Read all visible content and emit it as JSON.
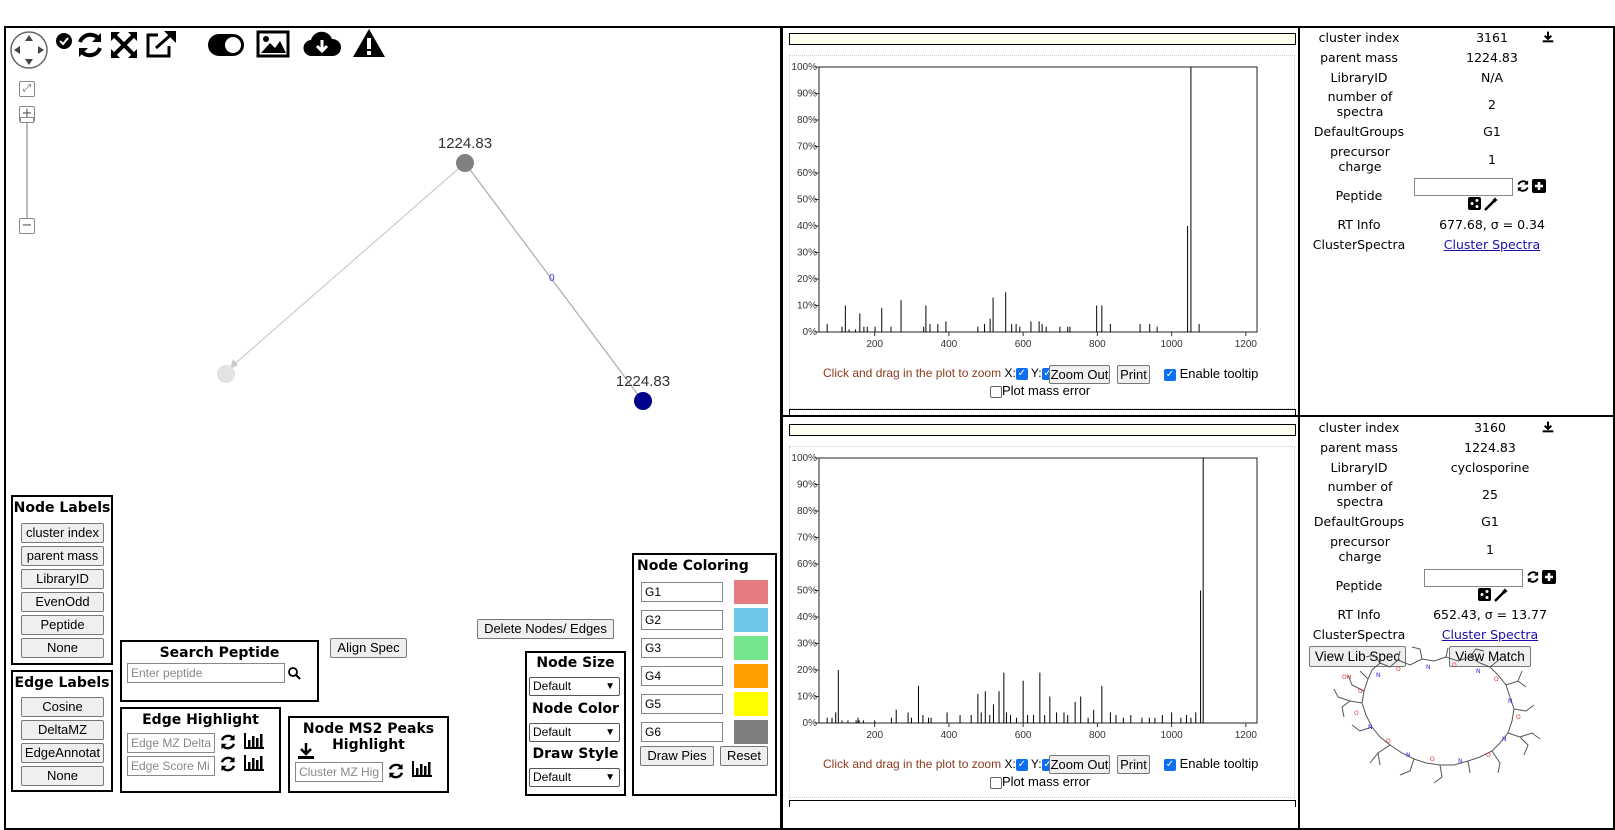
{
  "network": {
    "nodes": [
      {
        "label": "1224.83"
      },
      {
        "label": ""
      },
      {
        "label": "1224.83"
      }
    ],
    "edge_label": "0"
  },
  "toolbar": {
    "icons": [
      "pan-compass-icon",
      "check-circle-icon",
      "refresh-icon",
      "fullscreen-arrows-icon",
      "external-link-icon",
      "contrast-toggle-icon",
      "image-icon",
      "cloud-download-icon",
      "warning-icon"
    ]
  },
  "node_labels": {
    "title": "Node Labels",
    "buttons": [
      "cluster index",
      "parent mass",
      "LibraryID",
      "EvenOdd",
      "Peptide",
      "None"
    ]
  },
  "edge_labels": {
    "title": "Edge Labels",
    "buttons": [
      "Cosine",
      "DeltaMZ",
      "EdgeAnnotat",
      "None"
    ]
  },
  "search_peptide": {
    "title": "Search Peptide",
    "placeholder": "Enter peptide"
  },
  "align_spec": "Align Spec",
  "edge_highlight": {
    "title": "Edge Highlight",
    "mz_placeholder": "Edge MZ Delta",
    "score_placeholder": "Edge Score Mi"
  },
  "ms2_highlight": {
    "title_line1": "Node MS2 Peaks",
    "title_line2": "Highlight",
    "placeholder": "Cluster MZ Hig"
  },
  "delete_button": "Delete Nodes/ Edges",
  "node_settings": {
    "size_title": "Node Size",
    "size_value": "Default",
    "color_title": "Node Color",
    "color_value": "Default",
    "draw_title": "Draw Style",
    "draw_value": "Default"
  },
  "node_coloring": {
    "title": "Node Coloring",
    "groups": [
      {
        "name": "G1",
        "color": "#e67b82"
      },
      {
        "name": "G2",
        "color": "#6ec6e8"
      },
      {
        "name": "G3",
        "color": "#74e58a"
      },
      {
        "name": "G4",
        "color": "#ffa000"
      },
      {
        "name": "G5",
        "color": "#ffff00"
      },
      {
        "name": "G6",
        "color": "#7f7f7f"
      }
    ],
    "draw_pies": "Draw Pies",
    "reset": "Reset"
  },
  "spectrum_controls": {
    "hint": "Click and drag in the plot to zoom",
    "x_label": "X:",
    "y_label": "Y:",
    "zoom_out": "Zoom Out",
    "print": "Print",
    "tooltip": "Enable tooltip",
    "mass_error": "Plot mass error"
  },
  "spectrum_axis": {
    "x_ticks": [
      "200",
      "400",
      "600",
      "800",
      "1000",
      "1200"
    ],
    "y_ticks": [
      "0%",
      "10%",
      "20%",
      "30%",
      "40%",
      "50%",
      "60%",
      "70%",
      "80%",
      "90%",
      "100%"
    ]
  },
  "panels": [
    {
      "info": [
        {
          "key": "cluster index",
          "value": "3161"
        },
        {
          "key": "parent mass",
          "value": "1224.83"
        },
        {
          "key": "LibraryID",
          "value": "N/A"
        },
        {
          "key": "number of spectra",
          "value": "2"
        },
        {
          "key": "DefaultGroups",
          "value": "G1"
        },
        {
          "key": "precursor charge",
          "value": "1"
        },
        {
          "key": "Peptide",
          "value": ""
        },
        {
          "key": "RT Info",
          "value": "677.68, σ = 0.34"
        },
        {
          "key": "ClusterSpectra",
          "value": "Cluster Spectra"
        }
      ]
    },
    {
      "info": [
        {
          "key": "cluster index",
          "value": "3160"
        },
        {
          "key": "parent mass",
          "value": "1224.83"
        },
        {
          "key": "LibraryID",
          "value": "cyclosporine"
        },
        {
          "key": "number of spectra",
          "value": "25"
        },
        {
          "key": "DefaultGroups",
          "value": "G1"
        },
        {
          "key": "precursor charge",
          "value": "1"
        },
        {
          "key": "Peptide",
          "value": ""
        },
        {
          "key": "RT Info",
          "value": "652.43, σ = 13.77"
        },
        {
          "key": "ClusterSpectra",
          "value": "Cluster Spectra"
        }
      ],
      "view_lib_spec": "View Lib Spec",
      "view_match": "View Match"
    }
  ],
  "chart_data": [
    {
      "type": "bar",
      "xlim": [
        50,
        1230
      ],
      "ylim": [
        0,
        100
      ],
      "x": [
        72,
        112,
        121,
        131,
        148,
        160,
        171,
        180,
        201,
        219,
        244,
        271,
        332,
        338,
        349,
        370,
        392,
        478,
        496,
        511,
        519,
        553,
        569,
        581,
        591,
        621,
        643,
        651,
        662,
        699,
        720,
        726,
        798,
        812,
        835,
        915,
        941,
        961,
        1043,
        1052,
        1074
      ],
      "values": [
        3,
        2,
        10,
        1,
        1,
        7,
        2,
        2,
        2,
        9,
        2,
        12,
        2,
        10,
        3,
        3,
        4,
        2,
        3,
        5,
        13,
        15,
        3,
        3,
        2,
        4,
        4,
        3,
        2,
        2,
        2,
        2,
        10,
        10,
        3,
        3,
        3,
        2,
        40,
        100,
        3
      ]
    },
    {
      "type": "bar",
      "xlim": [
        50,
        1230
      ],
      "ylim": [
        0,
        100
      ],
      "x": [
        72,
        85,
        95,
        102,
        112,
        128,
        150,
        155,
        158,
        170,
        200,
        245,
        258,
        290,
        299,
        318,
        330,
        345,
        352,
        395,
        430,
        460,
        478,
        487,
        498,
        510,
        520,
        535,
        548,
        555,
        566,
        582,
        600,
        612,
        628,
        645,
        658,
        672,
        690,
        710,
        720,
        740,
        755,
        775,
        790,
        812,
        835,
        850,
        870,
        890,
        920,
        940,
        955,
        975,
        1000,
        1025,
        1040,
        1052,
        1065,
        1078,
        1085
      ],
      "values": [
        2,
        2,
        4,
        20,
        1,
        1,
        1,
        2,
        1,
        1,
        1,
        2,
        5,
        4,
        2,
        14,
        3,
        2,
        2,
        4,
        3,
        3,
        11,
        4,
        12,
        3,
        7,
        12,
        19,
        4,
        3,
        2,
        16,
        3,
        3,
        19,
        3,
        10,
        4,
        4,
        3,
        8,
        10,
        2,
        5,
        14,
        4,
        3,
        2,
        3,
        2,
        2,
        2,
        3,
        4,
        2,
        3,
        2,
        4,
        50,
        100
      ]
    }
  ]
}
